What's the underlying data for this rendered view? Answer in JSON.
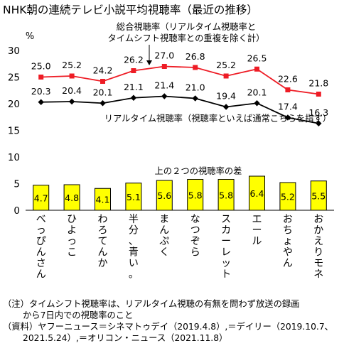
{
  "title": "NHK朝の連続テレビ小説平均視聴率（最近の推移）",
  "chart_data": {
    "type": "line+bar",
    "unit_label": "%",
    "y_ticks": [
      "30",
      "25",
      "20",
      "15",
      "10",
      "5",
      "0"
    ],
    "ylim": [
      0,
      30
    ],
    "categories": [
      "べっぴんさん",
      "ひよっこ",
      "わろてんか",
      "半分、青い。",
      "まんぷく",
      "なつぞら",
      "スカーレット",
      "エール",
      "おちょやん",
      "おかえりモネ"
    ],
    "series": [
      {
        "name": "総合視聴率（リアルタイム視聴率とタイムシフト視聴率との重複を除く計）",
        "color": "#ee1c25",
        "values": [
          25.0,
          25.2,
          24.2,
          26.2,
          27.0,
          26.8,
          25.2,
          26.5,
          22.6,
          21.8
        ],
        "labels": [
          "25.0",
          "25.2",
          "24.2",
          "26.2",
          "27.0",
          "26.8",
          "25.2",
          "26.5",
          "22.6",
          "21.8"
        ]
      },
      {
        "name": "リアルタイム視聴率（視聴率といえば通常こちらを指す）",
        "color": "#000000",
        "values": [
          20.3,
          20.4,
          20.1,
          21.1,
          21.4,
          21.0,
          19.4,
          20.1,
          17.4,
          16.3
        ],
        "labels": [
          "20.3",
          "20.4",
          "20.1",
          "21.1",
          "21.4",
          "21.0",
          "19.4",
          "20.1",
          "17.4",
          "16.3"
        ]
      },
      {
        "name": "上の２つの視聴率の差",
        "color": "#ffff00",
        "values": [
          4.7,
          4.8,
          4.1,
          5.1,
          5.6,
          5.8,
          5.8,
          6.4,
          5.2,
          5.5
        ],
        "labels": [
          "4.7",
          "4.8",
          "4.1",
          "5.1",
          "5.6",
          "5.8",
          "5.8",
          "6.4",
          "5.2",
          "5.5"
        ]
      }
    ],
    "annotations": {
      "total_line1": "総合視聴率（リアルタイム視聴率と",
      "total_line2": "タイムシフト視聴率との重複を除く計）",
      "realtime": "リアルタイム視聴率（視聴率といえば通常こちらを指す）",
      "diff": "上の２つの視聴率の差"
    }
  },
  "notes": {
    "note1": "（注）タイムシフト視聴率は、リアルタイム視聴の有無を問わず放送の録画",
    "note2": "から7日内での視聴率のこと",
    "source1": "（資料）ヤフーニュース＝シネマトゥデイ（2019.4.8）,＝デイリー（2019.10.7、",
    "source2": "2021.5.24）,＝オリコン・ニュース（2021.11.8）"
  }
}
